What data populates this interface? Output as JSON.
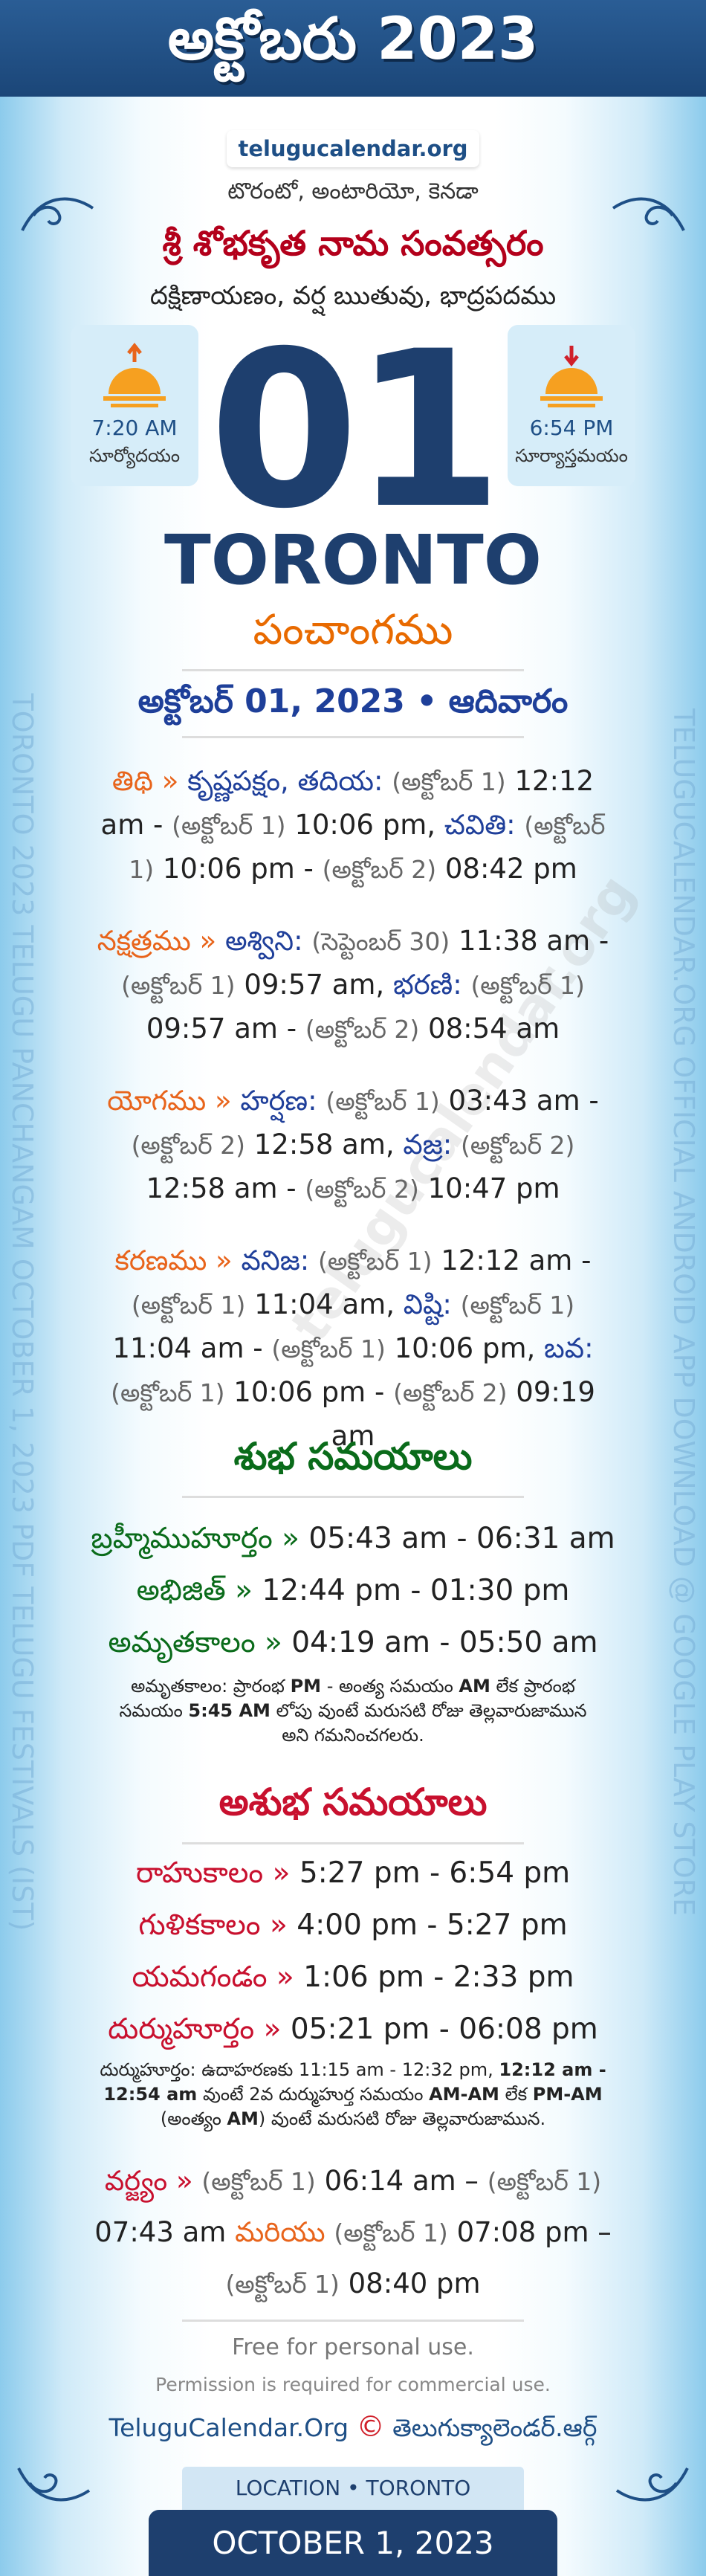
{
  "header": {
    "title": "అక్టోబరు 2023",
    "site": "telugucalendar.org"
  },
  "side": {
    "left": "TORONTO 2023 TELUGU PANCHANGAM OCTOBER 1, 2023 PDF TELUGU FESTIVALS (IST)",
    "right": "TELUGUCALENDAR.ORG OFFICIAL ANDROID APP DOWNLOAD @ GOOGLE PLAY STORE",
    "watermark": "telugucalendar.org"
  },
  "intro": {
    "location": "టొరంటో, అంటారియో, కెనడా",
    "year_name": "శ్రీ శోభకృత నామ సంవత్సరం",
    "season": "దక్షిణాయణం, వర్ష ఋతువు, భాద్రపదము"
  },
  "sunrise": {
    "time": "7:20 AM",
    "label": "సూర్యోదయం"
  },
  "sunset": {
    "time": "6:54 PM",
    "label": "సూర్యాస్తమయం"
  },
  "day": "01",
  "city": "TORONTO",
  "panchangam_title": "పంచాంగము",
  "date_line": "అక్టోబర్ 01, 2023 • ఆదివారం",
  "panchang": [
    {
      "label": "తిథి »",
      "items": [
        {
          "name": "కృష్ణపక్షం, తదియ:",
          "from_date": "(అక్టోబర్ 1)",
          "from": "12:12 am -",
          "to_date": "(అక్టోబర్ 1)",
          "to": "10:06 pm,"
        },
        {
          "name": "చవితి:",
          "from_date": "(అక్టోబర్ 1)",
          "from": "10:06 pm -",
          "to_date": "(అక్టోబర్ 2)",
          "to": "08:42 pm"
        }
      ]
    },
    {
      "label": "నక్షత్రము »",
      "items": [
        {
          "name": "అశ్విని:",
          "from_date": "(సెప్టెంబర్ 30)",
          "from": "11:38 am -",
          "to_date": "(అక్టోబర్ 1)",
          "to": "09:57 am,"
        },
        {
          "name": "భరణి:",
          "from_date": "(అక్టోబర్ 1)",
          "from": "09:57 am -",
          "to_date": "(అక్టోబర్ 2)",
          "to": "08:54 am"
        }
      ]
    },
    {
      "label": "యోగము »",
      "items": [
        {
          "name": "హర్షణ:",
          "from_date": "(అక్టోబర్ 1)",
          "from": "03:43 am -",
          "to_date": "(అక్టోబర్ 2)",
          "to": "12:58 am,"
        },
        {
          "name": "వజ్ర:",
          "from_date": "(అక్టోబర్ 2)",
          "from": "12:58 am -",
          "to_date": "(అక్టోబర్ 2)",
          "to": "10:47 pm"
        }
      ]
    },
    {
      "label": "కరణము »",
      "items": [
        {
          "name": "వనిజ:",
          "from_date": "(అక్టోబర్ 1)",
          "from": "12:12 am -",
          "to_date": "(అక్టోబర్ 1)",
          "to": "11:04 am,"
        },
        {
          "name": "విష్టి:",
          "from_date": "(అక్టోబర్ 1)",
          "from": "11:04 am -",
          "to_date": "(అక్టోబర్ 1)",
          "to": "10:06 pm,"
        },
        {
          "name": "బవ:",
          "from_date": "(అక్టోబర్ 1)",
          "from": "10:06 pm -",
          "to_date": "(అక్టోబర్ 2)",
          "to": "09:19 am"
        }
      ]
    }
  ],
  "shubha": {
    "title": "శుభ సమయాలు",
    "rows": [
      {
        "label": "బ్రహ్మీముహూర్తం »",
        "time": "05:43 am - 06:31 am"
      },
      {
        "label": "అభిజిత్ »",
        "time": "12:44 pm - 01:30 pm"
      },
      {
        "label": "అమృతకాలం »",
        "time": "04:19 am - 05:50 am"
      }
    ],
    "note": [
      "అమృతకాలం: ప్రారంభ ",
      "PM",
      " - అంత్య సమయం ",
      "AM",
      " లేక ప్రారంభ సమయం ",
      "5:45 AM",
      " లోపు వుంటే మరుసటి రోజు తెల్లవారుజామున అని గమనించగలరు."
    ]
  },
  "ashubha": {
    "title": "అశుభ సమయాలు",
    "rows": [
      {
        "label": "రాహుకాలం »",
        "time": "5:27 pm - 6:54 pm"
      },
      {
        "label": "గుళికకాలం »",
        "time": "4:00 pm - 5:27 pm"
      },
      {
        "label": "యమగండం »",
        "time": "1:06 pm - 2:33 pm"
      },
      {
        "label": "దుర్ముహూర్తం »",
        "time": "05:21 pm - 06:08 pm"
      }
    ],
    "note": [
      "దుర్ముహూర్తం: ఉదాహరణకు 11:15 am - 12:32 pm, ",
      "12:12 am - 12:54 am",
      " వుంటే 2వ దుర్ముహుర్త సమయం ",
      "AM-AM",
      " లేక ",
      "PM-AM",
      " (అంత్యం ",
      "AM",
      ") వుంటే మరుసటి రోజు తెల్లవారుజామున."
    ],
    "varjyam": {
      "label": "వర్జ్యం »",
      "items": [
        {
          "from_date": "(అక్టోబర్ 1)",
          "from": "06:14 am –",
          "to_date": "(అక్టోబర్ 1)",
          "to": "07:43 am"
        },
        {
          "from_date": "(అక్టోబర్ 1)",
          "from": "07:08 pm –",
          "to_date": "(అక్టోబర్ 1)",
          "to": "08:40 pm"
        }
      ],
      "joiner": "మరియు"
    }
  },
  "footer": {
    "free": "Free for personal use.",
    "permission": "Permission is required for commercial use.",
    "link": "TeluguCalendar.Org",
    "copyright": "©",
    "link_te": "తెలుగుక్యాలెండర్.ఆర్గ్",
    "location": "LOCATION • TORONTO",
    "date": "OCTOBER 1, 2023"
  }
}
